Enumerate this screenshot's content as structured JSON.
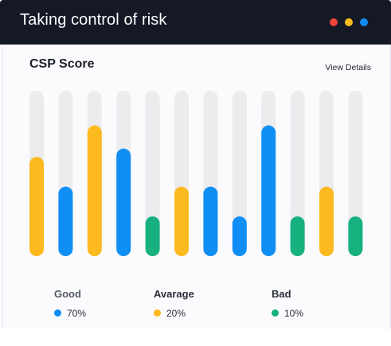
{
  "header": {
    "title": "Taking control of risk",
    "window_dots": [
      "#f0433c",
      "#fbbc1d",
      "#138bf3"
    ]
  },
  "card": {
    "title": "CSP Score",
    "link_label": "View Details"
  },
  "colors": {
    "good": "#0f8ef4",
    "average": "#fcba20",
    "bad": "#17b07f",
    "track": "#ececef",
    "header_bg": "#141925"
  },
  "chart_data": {
    "type": "bar",
    "ylim": [
      0,
      100
    ],
    "bars": [
      {
        "category": "average",
        "value": 60
      },
      {
        "category": "good",
        "value": 42
      },
      {
        "category": "average",
        "value": 79
      },
      {
        "category": "good",
        "value": 65
      },
      {
        "category": "bad",
        "value": 24
      },
      {
        "category": "average",
        "value": 42
      },
      {
        "category": "good",
        "value": 42
      },
      {
        "category": "good",
        "value": 24
      },
      {
        "category": "good",
        "value": 79
      },
      {
        "category": "bad",
        "value": 24
      },
      {
        "category": "average",
        "value": 42
      },
      {
        "category": "bad",
        "value": 24
      }
    ]
  },
  "legend": [
    {
      "key": "good",
      "label": "Good",
      "value": "70%"
    },
    {
      "key": "average",
      "label": "Avarage",
      "value": "20%"
    },
    {
      "key": "bad",
      "label": "Bad",
      "value": "10%"
    }
  ]
}
